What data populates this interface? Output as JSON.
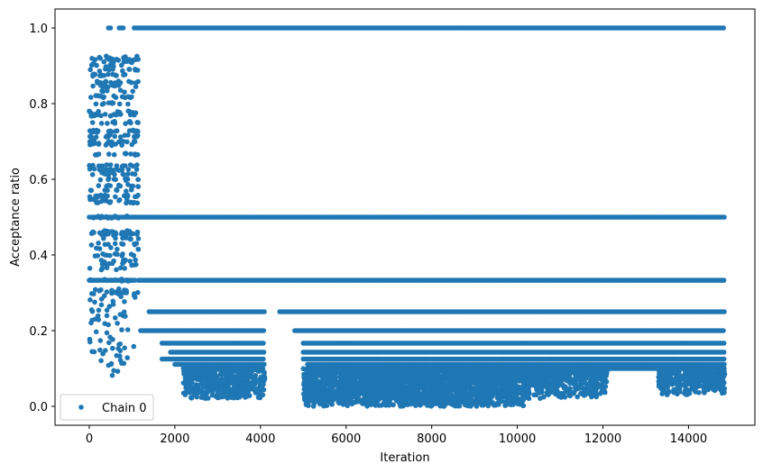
{
  "chart_data": {
    "type": "scatter",
    "xlabel": "Iteration",
    "ylabel": "Acceptance ratio",
    "xlim": [
      -800,
      15550
    ],
    "ylim": [
      -0.05,
      1.05
    ],
    "x_ticks": [
      0,
      2000,
      4000,
      6000,
      8000,
      10000,
      12000,
      14000
    ],
    "x_tick_labels": [
      "0",
      "2000",
      "4000",
      "6000",
      "8000",
      "10000",
      "12000",
      "14000"
    ],
    "y_ticks": [
      0.0,
      0.2,
      0.4,
      0.6,
      0.8,
      1.0
    ],
    "y_tick_labels": [
      "0.0",
      "0.2",
      "0.4",
      "0.6",
      "0.8",
      "1.0"
    ],
    "grid": false,
    "legend_position": "lower-left",
    "series": [
      {
        "name": "Chain 0",
        "color": "#1f77b4",
        "marker": "circle",
        "iteration_range": [
          0,
          14850
        ],
        "bands": [
          {
            "segments": [
              [
                450,
                500
              ],
              [
                700,
                800
              ],
              [
                1050,
                14850
              ]
            ],
            "value": 1.0,
            "label": "1/1"
          },
          {
            "segments": [
              [
                0,
                14850
              ]
            ],
            "value": 0.5,
            "label": "1/2"
          },
          {
            "segments": [
              [
                0,
                1100
              ],
              [
                1150,
                14850
              ]
            ],
            "value": 0.333,
            "label": "1/3"
          },
          {
            "segments": [
              [
                1400,
                4100
              ],
              [
                4450,
                14850
              ]
            ],
            "value": 0.25,
            "label": "1/4"
          },
          {
            "segments": [
              [
                1200,
                4100
              ],
              [
                4800,
                14850
              ]
            ],
            "value": 0.2,
            "label": "1/5"
          },
          {
            "segments": [
              [
                1700,
                4100
              ],
              [
                5000,
                14850
              ]
            ],
            "value": 0.167,
            "label": "1/6"
          },
          {
            "segments": [
              [
                1900,
                4100
              ],
              [
                5000,
                14850
              ]
            ],
            "value": 0.143,
            "label": "1/7"
          },
          {
            "segments": [
              [
                1700,
                4100
              ],
              [
                5000,
                14850
              ]
            ],
            "value": 0.125,
            "label": "1/8"
          },
          {
            "segments": [
              [
                2000,
                4100
              ],
              [
                5100,
                14850
              ]
            ],
            "value": 0.111,
            "label": "1/9"
          },
          {
            "segments": [
              [
                2200,
                4100
              ],
              [
                5100,
                14850
              ]
            ],
            "value": 0.1,
            "label": "1/10"
          }
        ],
        "scatter_regions": [
          {
            "x_range": [
              0,
              1150
            ],
            "y_range": [
              0.3,
              0.93
            ],
            "density": "dense"
          },
          {
            "x_range": [
              0,
              1150
            ],
            "y_range": [
              0.08,
              0.3
            ],
            "density": "sparse"
          },
          {
            "x_range": [
              2200,
              4100
            ],
            "y_range": [
              0.02,
              0.1
            ],
            "density": "medium"
          },
          {
            "x_range": [
              5000,
              10200
            ],
            "y_range": [
              0.0,
              0.1
            ],
            "density": "dense"
          },
          {
            "x_range": [
              10200,
              12100
            ],
            "y_range": [
              0.02,
              0.1
            ],
            "density": "medium"
          },
          {
            "x_range": [
              13300,
              14850
            ],
            "y_range": [
              0.03,
              0.1
            ],
            "density": "medium"
          }
        ]
      }
    ]
  }
}
